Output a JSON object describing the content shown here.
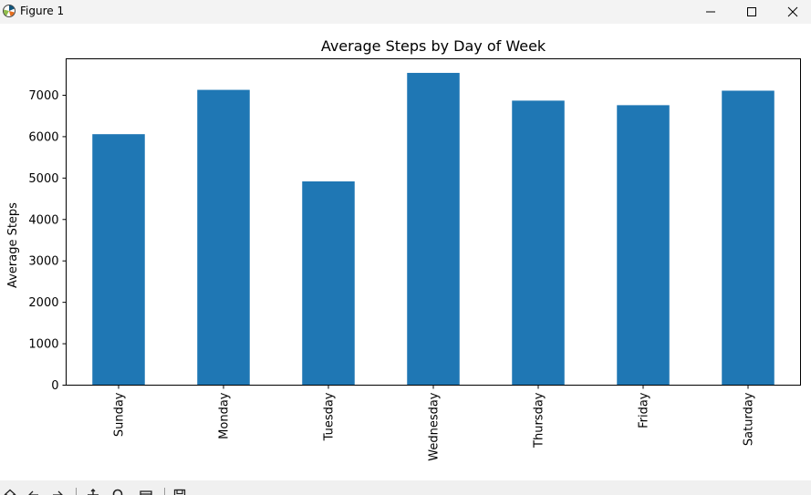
{
  "window": {
    "title": "Figure 1",
    "icon": "matplotlib-icon",
    "controls": [
      "minimize-icon",
      "maximize-icon",
      "close-icon"
    ]
  },
  "toolbar": {
    "tools": [
      "home-icon",
      "back-icon",
      "forward-icon",
      "pan-icon",
      "zoom-icon",
      "configure-subplots-icon",
      "save-icon"
    ]
  },
  "chart_data": {
    "type": "bar",
    "title": "Average Steps by Day of Week",
    "xlabel": "",
    "ylabel": "Average Steps",
    "categories": [
      "Sunday",
      "Monday",
      "Tuesday",
      "Wednesday",
      "Thursday",
      "Friday",
      "Saturday"
    ],
    "values": [
      6060,
      7130,
      4920,
      7540,
      6870,
      6760,
      7110
    ],
    "ylim": [
      0,
      7880
    ],
    "yticks": [
      0,
      1000,
      2000,
      3000,
      4000,
      5000,
      6000,
      7000
    ],
    "ytick_labels": [
      "0",
      "1000",
      "2000",
      "3000",
      "4000",
      "5000",
      "6000",
      "7000"
    ],
    "bar_color": "#1f77b4",
    "grid": false,
    "legend": "none"
  }
}
